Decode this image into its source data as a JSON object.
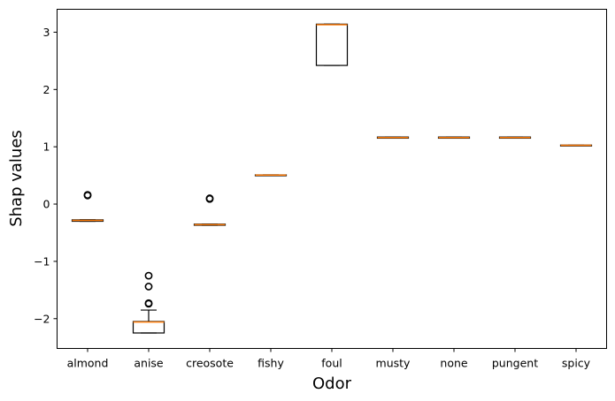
{
  "chart_data": {
    "type": "box",
    "xlabel": "Odor",
    "ylabel": "Shap values",
    "ylim": [
      -2.52,
      3.4
    ],
    "yticks": [
      3,
      2,
      1,
      0,
      -1,
      -2
    ],
    "ytick_labels": [
      "3",
      "2",
      "1",
      "0",
      "−1",
      "−2"
    ],
    "grid": false,
    "colors": {
      "box": "#000000",
      "median": "#ff7f0e",
      "outlier": "#000000"
    },
    "categories": [
      "almond",
      "anise",
      "creosote",
      "fishy",
      "foul",
      "musty",
      "none",
      "pungent",
      "spicy"
    ],
    "boxes": [
      {
        "q1": -0.3,
        "median": -0.285,
        "q3": -0.275,
        "whislo": -0.3,
        "whishi": -0.275,
        "fliers": [
          0.15,
          0.16
        ]
      },
      {
        "q1": -2.25,
        "median": -2.06,
        "q3": -2.05,
        "whislo": -2.25,
        "whishi": -1.85,
        "fliers": [
          -1.25,
          -1.44,
          -1.73,
          -1.74
        ]
      },
      {
        "q1": -0.37,
        "median": -0.36,
        "q3": -0.35,
        "whislo": -0.37,
        "whishi": -0.35,
        "fliers": [
          0.09,
          0.1
        ]
      },
      {
        "q1": 0.5,
        "median": 0.505,
        "q3": 0.51,
        "whislo": 0.5,
        "whishi": 0.51,
        "fliers": []
      },
      {
        "q1": 2.42,
        "median": 3.13,
        "q3": 3.14,
        "whislo": 2.42,
        "whishi": 3.14,
        "fliers": []
      },
      {
        "q1": 1.15,
        "median": 1.16,
        "q3": 1.17,
        "whislo": 1.15,
        "whishi": 1.17,
        "fliers": []
      },
      {
        "q1": 1.15,
        "median": 1.16,
        "q3": 1.17,
        "whislo": 1.15,
        "whishi": 1.17,
        "fliers": []
      },
      {
        "q1": 1.15,
        "median": 1.16,
        "q3": 1.17,
        "whislo": 1.15,
        "whishi": 1.17,
        "fliers": []
      },
      {
        "q1": 1.02,
        "median": 1.025,
        "q3": 1.03,
        "whislo": 1.02,
        "whishi": 1.03,
        "fliers": []
      }
    ]
  }
}
